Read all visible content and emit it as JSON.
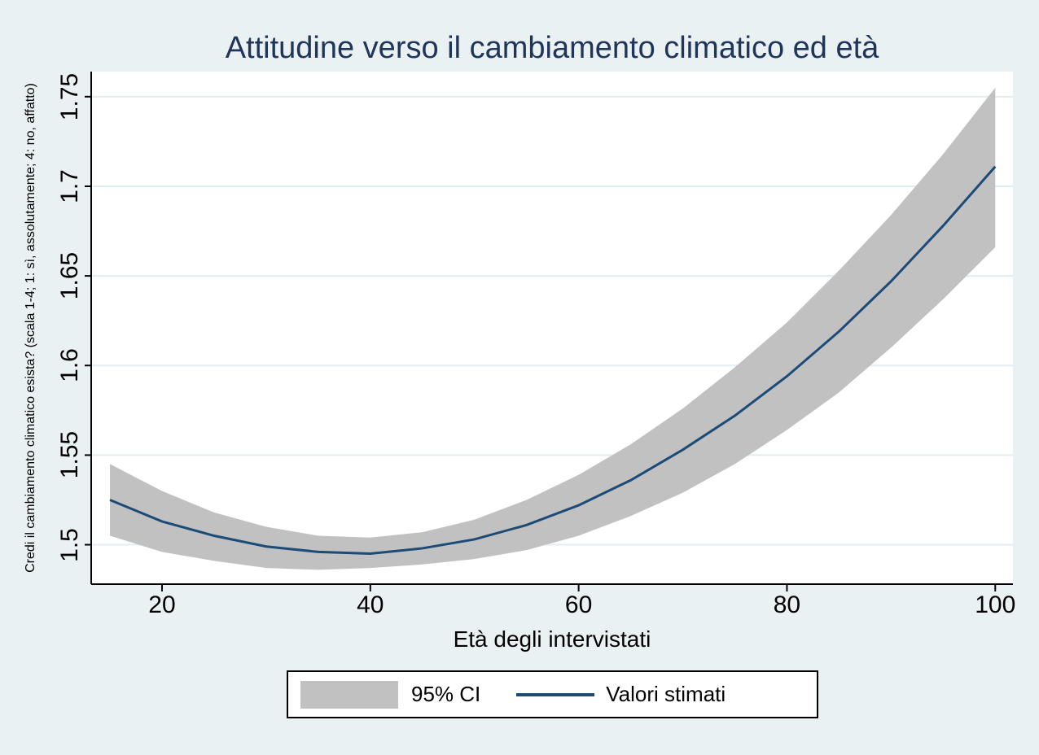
{
  "title": "Attitudine verso il cambiamento climatico ed età",
  "colors": {
    "background": "#eaf1f3",
    "plot_background": "#ffffff",
    "gridline": "#e2ecf3",
    "band": "#c1c1c1",
    "line": "#1c4b77",
    "title_text": "#20355a",
    "axis": "#000000"
  },
  "chart_data": {
    "type": "line",
    "title": "Attitudine verso il cambiamento climatico ed età",
    "xlabel": "Età degli intervistati",
    "ylabel": "Credi il cambiamento climatico esista? (scala 1-4; 1: sì, assolutamente; 4: no, affatto)",
    "xlim": [
      13.2,
      101.7
    ],
    "ylim": [
      1.478,
      1.764
    ],
    "x_ticks": [
      20,
      40,
      60,
      80,
      100
    ],
    "x_tick_labels": [
      "20",
      "40",
      "60",
      "80",
      "100"
    ],
    "y_ticks": [
      1.5,
      1.55,
      1.6,
      1.65,
      1.7,
      1.75
    ],
    "y_tick_labels": [
      "1.5",
      "1.55",
      "1.6",
      "1.65",
      "1.7",
      "1.75"
    ],
    "grid": "horizontal-only",
    "legend": {
      "position": "bottom-center",
      "entries": [
        {
          "label": "95% CI",
          "type": "area",
          "color": "#c1c1c1"
        },
        {
          "label": "Valori stimati",
          "type": "line",
          "color": "#1c4b77"
        }
      ]
    },
    "series": [
      {
        "name": "Valori stimati",
        "type": "line",
        "x": [
          15,
          20,
          25,
          30,
          35,
          40,
          45,
          50,
          55,
          60,
          65,
          70,
          75,
          80,
          85,
          90,
          95,
          100
        ],
        "y": [
          1.525,
          1.513,
          1.505,
          1.499,
          1.496,
          1.495,
          1.498,
          1.503,
          1.511,
          1.522,
          1.536,
          1.553,
          1.572,
          1.594,
          1.619,
          1.647,
          1.678,
          1.711
        ]
      },
      {
        "name": "95% CI",
        "type": "band",
        "x": [
          15,
          20,
          25,
          30,
          35,
          40,
          45,
          50,
          55,
          60,
          65,
          70,
          75,
          80,
          85,
          90,
          95,
          100
        ],
        "lo": [
          1.505,
          1.496,
          1.491,
          1.487,
          1.486,
          1.487,
          1.489,
          1.492,
          1.497,
          1.505,
          1.516,
          1.529,
          1.545,
          1.564,
          1.585,
          1.61,
          1.637,
          1.666
        ],
        "hi": [
          1.545,
          1.53,
          1.518,
          1.51,
          1.505,
          1.504,
          1.507,
          1.514,
          1.525,
          1.539,
          1.556,
          1.576,
          1.599,
          1.624,
          1.653,
          1.684,
          1.718,
          1.755
        ]
      }
    ]
  }
}
